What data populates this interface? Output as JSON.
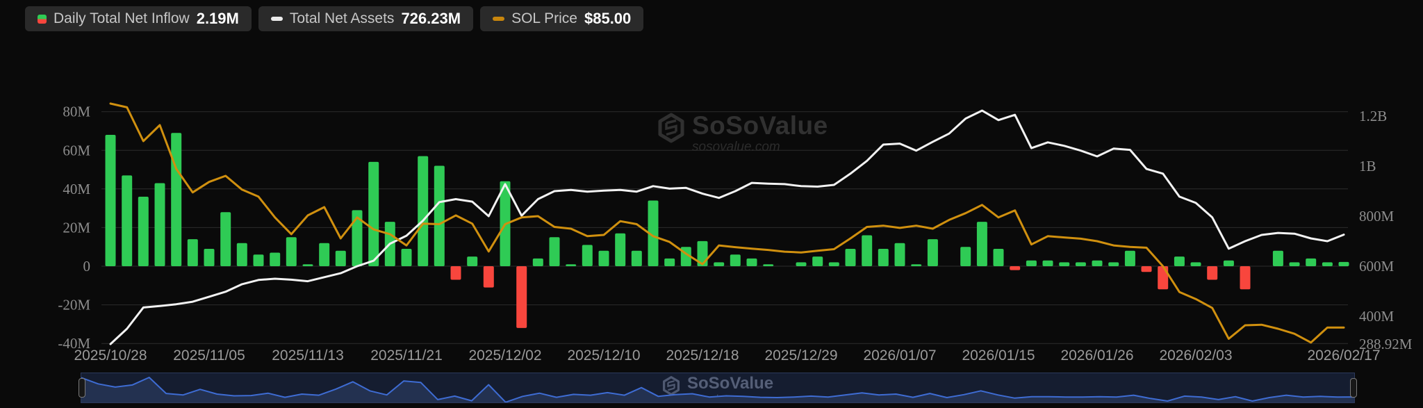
{
  "legend": {
    "items": [
      {
        "label": "Daily Total Net Inflow",
        "value": "2.19M"
      },
      {
        "label": "Total Net Assets",
        "value": "726.23M"
      },
      {
        "label": "SOL Price",
        "value": "$85.00"
      }
    ]
  },
  "watermark": {
    "brand": "SoSoValue",
    "domain": "sosovalue.com"
  },
  "colors": {
    "background": "#0a0a0a",
    "green": "#2fcb55",
    "red": "#f8463d",
    "white_line": "#f2f2f2",
    "orange_line": "#d0900f",
    "grid": "#2c2c2c",
    "axis_text": "#8d8d8d",
    "legend_pill_bg": "#2a2a2a",
    "nav_bg": "#151d30",
    "nav_area_fill": "#233150",
    "nav_line": "#3e6cd3"
  },
  "chart_data": {
    "type": "bar+line combo (daily ETF net inflow bars, total net assets line, SOL price line)",
    "title": "",
    "grid": "horizontal gridlines on",
    "legend_position": "top-left",
    "left_axis": {
      "ticks": [
        "80M",
        "60M",
        "40M",
        "20M",
        "0",
        "-20M",
        "-40M"
      ],
      "values": [
        80,
        60,
        40,
        20,
        0,
        -20,
        -40
      ],
      "unit": "M (millions USD, daily net inflow)"
    },
    "right_axis": {
      "ticks": [
        "1.2B",
        "1B",
        "800M",
        "600M",
        "400M",
        "288.92M"
      ],
      "values": [
        1200,
        1000,
        800,
        600,
        400,
        288.92
      ],
      "unit": "M (millions USD, total net assets)"
    },
    "x_axis_ticks": [
      {
        "label": "2025/10/28",
        "index": 0
      },
      {
        "label": "2025/11/05",
        "index": 6
      },
      {
        "label": "2025/11/13",
        "index": 12
      },
      {
        "label": "2025/11/21",
        "index": 18
      },
      {
        "label": "2025/12/02",
        "index": 24
      },
      {
        "label": "2025/12/10",
        "index": 30
      },
      {
        "label": "2025/12/18",
        "index": 36
      },
      {
        "label": "2025/12/29",
        "index": 42
      },
      {
        "label": "2026/01/07",
        "index": 48
      },
      {
        "label": "2026/01/15",
        "index": 54
      },
      {
        "label": "2026/01/26",
        "index": 60
      },
      {
        "label": "2026/02/03",
        "index": 66
      },
      {
        "label": "2026/02/17",
        "index": 75
      }
    ],
    "categories": [
      "2025/10/28",
      "2025/10/29",
      "2025/10/30",
      "2025/10/31",
      "2025/11/03",
      "2025/11/04",
      "2025/11/05",
      "2025/11/06",
      "2025/11/07",
      "2025/11/10",
      "2025/11/11",
      "2025/11/12",
      "2025/11/13",
      "2025/11/14",
      "2025/11/17",
      "2025/11/18",
      "2025/11/19",
      "2025/11/20",
      "2025/11/21",
      "2025/11/24",
      "2025/11/25",
      "2025/11/26",
      "2025/11/28",
      "2025/12/01",
      "2025/12/02",
      "2025/12/03",
      "2025/12/04",
      "2025/12/05",
      "2025/12/08",
      "2025/12/09",
      "2025/12/10",
      "2025/12/11",
      "2025/12/12",
      "2025/12/15",
      "2025/12/16",
      "2025/12/17",
      "2025/12/18",
      "2025/12/19",
      "2025/12/22",
      "2025/12/23",
      "2025/12/24",
      "2025/12/26",
      "2025/12/29",
      "2025/12/30",
      "2025/12/31",
      "2026/01/02",
      "2026/01/05",
      "2026/01/06",
      "2026/01/07",
      "2026/01/08",
      "2026/01/09",
      "2026/01/12",
      "2026/01/13",
      "2026/01/14",
      "2026/01/15",
      "2026/01/16",
      "2026/01/20",
      "2026/01/21",
      "2026/01/22",
      "2026/01/23",
      "2026/01/26",
      "2026/01/27",
      "2026/01/28",
      "2026/01/29",
      "2026/01/30",
      "2026/02/02",
      "2026/02/03",
      "2026/02/04",
      "2026/02/05",
      "2026/02/06",
      "2026/02/09",
      "2026/02/10",
      "2026/02/11",
      "2026/02/12",
      "2026/02/13",
      "2026/02/17"
    ],
    "series": [
      {
        "name": "Daily Total Net Inflow",
        "type": "bar",
        "axis": "left",
        "unit": "M",
        "latest_label": "2.19M",
        "values": [
          68,
          47,
          36,
          43,
          69,
          14,
          9,
          28,
          12,
          6,
          7,
          15,
          1,
          12,
          8,
          29,
          54,
          23,
          9,
          57,
          52,
          -7,
          5,
          -11,
          44,
          -32,
          4,
          15,
          1,
          11,
          8,
          17,
          8,
          34,
          4,
          10,
          13,
          2,
          6,
          4,
          1,
          0,
          2,
          5,
          2,
          9,
          16,
          9,
          12,
          1,
          14,
          0,
          10,
          23,
          9,
          -2,
          3,
          3,
          2,
          2,
          3,
          2,
          8,
          -3,
          -12,
          5,
          2,
          -7,
          3,
          -12,
          0,
          8,
          2,
          4,
          2,
          2.19
        ]
      },
      {
        "name": "Total Net Assets",
        "type": "line",
        "axis": "right",
        "unit": "M",
        "latest_label": "726.23M",
        "values": [
          289,
          350,
          435,
          441,
          448,
          458,
          478,
          498,
          528,
          545,
          550,
          546,
          540,
          556,
          572,
          600,
          622,
          690,
          722,
          782,
          856,
          868,
          858,
          800,
          928,
          802,
          868,
          900,
          905,
          898,
          902,
          905,
          898,
          920,
          910,
          913,
          890,
          873,
          900,
          933,
          930,
          928,
          920,
          918,
          925,
          970,
          1021,
          1086,
          1090,
          1062,
          1097,
          1130,
          1190,
          1222,
          1184,
          1205,
          1072,
          1095,
          1081,
          1062,
          1039,
          1070,
          1065,
          989,
          970,
          878,
          853,
          795,
          670,
          700,
          725,
          733,
          730,
          711,
          700,
          726.23
        ]
      },
      {
        "name": "SOL Price",
        "type": "line",
        "axis": "hidden price axis (only latest value shown in legend)",
        "latest_label": "$85.00",
        "note": "curve plotted in right-axis display units as drawn on screen",
        "display_values": [
          1250,
          1235,
          1100,
          1164,
          989,
          895,
          937,
          961,
          906,
          878,
          795,
          728,
          803,
          836,
          711,
          795,
          747,
          728,
          683,
          770,
          768,
          803,
          770,
          659,
          768,
          795,
          800,
          757,
          750,
          720,
          725,
          780,
          768,
          720,
          697,
          650,
          608,
          683,
          676,
          670,
          665,
          658,
          655,
          662,
          668,
          711,
          757,
          762,
          753,
          762,
          750,
          785,
          812,
          845,
          795,
          823,
          687,
          720,
          715,
          710,
          700,
          683,
          677,
          674,
          600,
          497,
          469,
          433,
          310,
          364,
          366,
          350,
          330,
          295,
          355,
          355
        ]
      }
    ]
  },
  "navigator": {
    "description": "data-zoom strip showing Daily Total Net Inflow as blue area, full range selected",
    "window": "2025/10/28 – 2026/02/17"
  }
}
